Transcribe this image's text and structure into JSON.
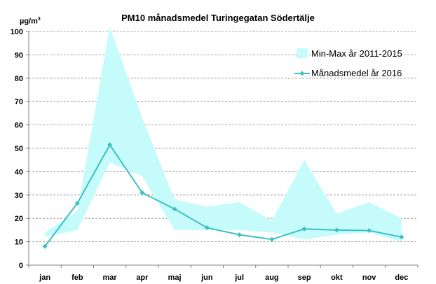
{
  "chart_data": {
    "type": "line",
    "title": "PM10 månadsmedel Turingegatan Södertälje",
    "ylabel_main": "µg/m",
    "ylabel_sup": "3",
    "xlabel": "",
    "ylim": [
      0,
      100
    ],
    "yticks": [
      "0",
      "10",
      "20",
      "30",
      "40",
      "50",
      "60",
      "70",
      "80",
      "90",
      "100"
    ],
    "grid": true,
    "legend_position": "top-right",
    "categories": [
      "jan",
      "feb",
      "mar",
      "apr",
      "maj",
      "jun",
      "jul",
      "aug",
      "sep",
      "okt",
      "nov",
      "dec"
    ],
    "band": {
      "name": "Min-Max år 2011-2015",
      "color": "#c6fbfb",
      "min": [
        12,
        15,
        44,
        38,
        15,
        15,
        15,
        14,
        11,
        13,
        14,
        10
      ],
      "max": [
        14,
        23,
        102,
        63,
        28,
        25,
        27,
        19,
        45,
        22,
        27,
        20
      ]
    },
    "series": [
      {
        "name": "Månadsmedel år 2016",
        "color": "#3cc0c3",
        "values": [
          8,
          26.5,
          51.5,
          31,
          24,
          16,
          13,
          11,
          15.5,
          15,
          14.8,
          12
        ]
      }
    ]
  }
}
